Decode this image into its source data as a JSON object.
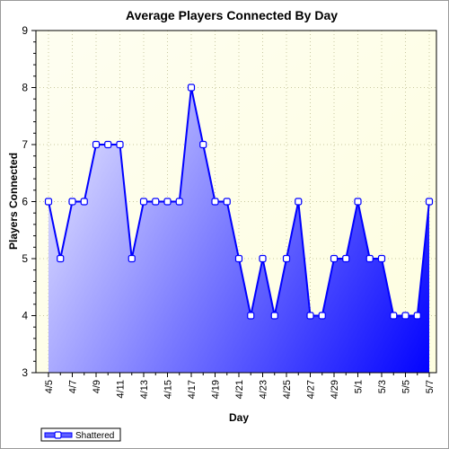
{
  "chart_data": {
    "type": "area",
    "title": "Average Players Connected By Day",
    "xlabel": "Day",
    "ylabel": "Players Connected",
    "ylim": [
      3,
      9
    ],
    "yticks": [
      3,
      4,
      5,
      6,
      7,
      8,
      9
    ],
    "grid": true,
    "legend_position": "bottom-left",
    "x": [
      "4/5",
      "4/6",
      "4/7",
      "4/8",
      "4/9",
      "4/10",
      "4/11",
      "4/12",
      "4/13",
      "4/14",
      "4/15",
      "4/16",
      "4/17",
      "4/18",
      "4/19",
      "4/20",
      "4/21",
      "4/22",
      "4/23",
      "4/24",
      "4/25",
      "4/26",
      "4/27",
      "4/28",
      "4/29",
      "4/30",
      "5/1",
      "5/2",
      "5/3",
      "5/4",
      "5/5",
      "5/6",
      "5/7"
    ],
    "xtick_labels": [
      "4/5",
      "4/7",
      "4/9",
      "4/11",
      "4/13",
      "4/15",
      "4/17",
      "4/19",
      "4/21",
      "4/23",
      "4/25",
      "4/27",
      "4/29",
      "5/1",
      "5/3",
      "5/5",
      "5/7"
    ],
    "series": [
      {
        "name": "Shattered",
        "values": [
          6,
          5,
          6,
          6,
          7,
          7,
          7,
          5,
          6,
          6,
          6,
          6,
          8,
          7,
          6,
          6,
          5,
          4,
          5,
          4,
          5,
          6,
          4,
          4,
          5,
          5,
          6,
          5,
          5,
          4,
          4,
          4,
          6
        ]
      }
    ],
    "colors": {
      "plot_bg_top": "#ffffe0",
      "plot_bg_bottom": "#fefee6",
      "line": "#0000ff",
      "fill_light": "#dcdcff",
      "fill_dark": "#0000ff",
      "marker_fill": "#ffffff",
      "grid": "#c8c8a0"
    }
  }
}
